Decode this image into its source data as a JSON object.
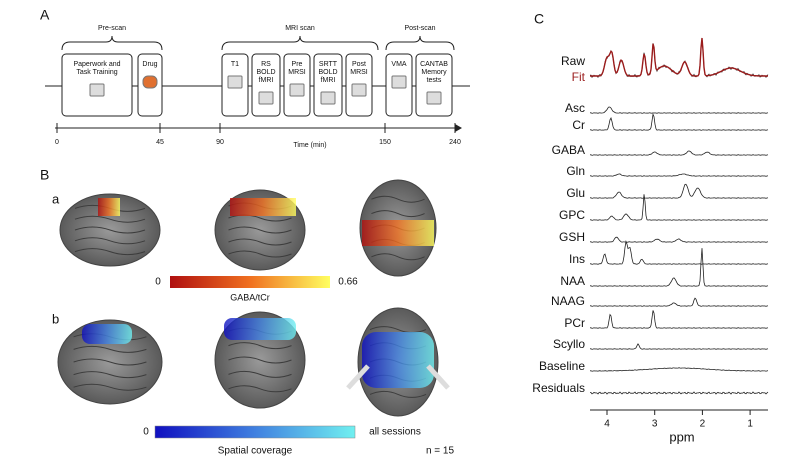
{
  "panels": {
    "A": "A",
    "B": "B",
    "C": "C",
    "a": "a",
    "b": "b"
  },
  "timeline": {
    "groups": [
      "Pre-scan",
      "MRI scan",
      "Post-scan"
    ],
    "boxes": [
      {
        "lines": [
          "Paperwork and",
          "Task Training"
        ]
      },
      {
        "lines": [
          "Drug"
        ]
      },
      {
        "lines": [
          "T1"
        ]
      },
      {
        "lines": [
          "RS",
          "BOLD",
          "fMRI"
        ]
      },
      {
        "lines": [
          "Pre",
          "MRSI"
        ]
      },
      {
        "lines": [
          "SRTT",
          "BOLD",
          "fMRI"
        ]
      },
      {
        "lines": [
          "Post",
          "MRSI"
        ]
      },
      {
        "lines": [
          "VMA"
        ]
      },
      {
        "lines": [
          "CANTAB",
          "Memory",
          "tests"
        ]
      }
    ],
    "ticks": [
      "0",
      "45",
      "90",
      "150",
      "240"
    ],
    "axis_label": "Time (min)"
  },
  "gaba_colorbar": {
    "min": "0",
    "max": "0.66",
    "label": "GABA/tCr"
  },
  "coverage_colorbar": {
    "min": "0",
    "max": "all sessions",
    "label": "Spatial coverage",
    "n": "n = 15"
  },
  "spectra": {
    "raw": "Raw",
    "fit": "Fit",
    "metabolites": [
      "Asc",
      "Cr",
      "GABA",
      "Gln",
      "Glu",
      "GPC",
      "GSH",
      "Ins",
      "NAA",
      "NAAG",
      "PCr",
      "Scyllo",
      "Baseline",
      "Residuals"
    ],
    "ticks": [
      "4",
      "3",
      "2",
      "1"
    ],
    "axis_label": "ppm"
  }
}
